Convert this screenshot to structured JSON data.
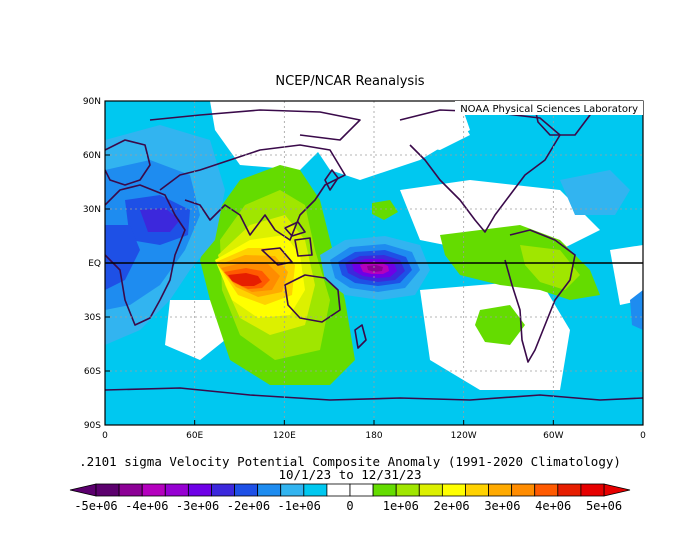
{
  "title": "NCEP/NCAR Reanalysis",
  "credit": "NOAA Physical Sciences Laboratory",
  "lat_labels": [
    "90N",
    "60N",
    "30N",
    "EQ",
    "30S",
    "60S",
    "90S"
  ],
  "lon_labels": [
    "0",
    "60E",
    "120E",
    "180",
    "120W",
    "60W",
    "0"
  ],
  "caption_line1": ".2101 sigma Velocity Potential  Composite Anomaly (1991-2020 Climatology)",
  "caption_line2": "10/1/23  to 12/31/23",
  "colorbar": {
    "labels": [
      "-5e+06",
      "-4e+06",
      "-3e+06",
      "-2e+06",
      "-1e+06",
      "0",
      "1e+06",
      "2e+06",
      "3e+06",
      "4e+06",
      "5e+06"
    ],
    "colors": [
      "#5c006e",
      "#8c0096",
      "#b400be",
      "#9600d2",
      "#6e00e6",
      "#3c28dc",
      "#1e50e6",
      "#1e8cf0",
      "#32b4f0",
      "#00c8f0",
      "#ffffff",
      "#ffffff",
      "#64dc00",
      "#a0e600",
      "#dcf000",
      "#ffff00",
      "#ffd200",
      "#ffaa00",
      "#ff8c00",
      "#ff5a00",
      "#e61e00",
      "#e60000"
    ]
  },
  "colors": {
    "land_outline": "#3a0a4a",
    "equator": "#000000",
    "grid": "#9e9e9e"
  }
}
